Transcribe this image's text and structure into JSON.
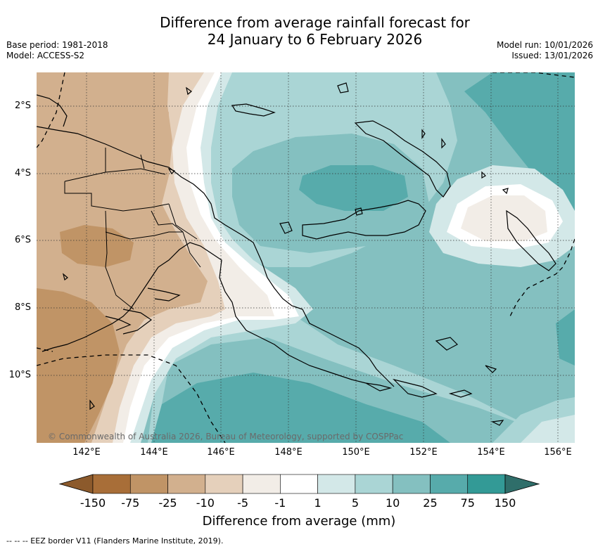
{
  "header": {
    "title_line1": "Difference from average rainfall forecast for",
    "title_line2": "24 January to 6 February 2026",
    "base_period": "Base period: 1981-2018",
    "model": "Model: ACCESS-S2",
    "model_run": "Model run: 10/01/2026",
    "issued": "Issued: 13/01/2026"
  },
  "map": {
    "lat_labels": [
      "2°S",
      "4°S",
      "6°S",
      "8°S",
      "10°S"
    ],
    "lon_labels": [
      "142°E",
      "144°E",
      "146°E",
      "148°E",
      "150°E",
      "152°E",
      "154°E",
      "156°E"
    ],
    "copyright": "© Commonwealth of Australia 2026, Bureau of Meteorology, supported by COSPPac",
    "colors": {
      "dry_3": "#a86e38",
      "dry_2": "#c09466",
      "dry_1": "#d2b08e",
      "dry_0": "#e5d0bb",
      "near_dry": "#f2ede7",
      "neutral": "#ffffff",
      "wet_0": "#d3e8e8",
      "wet_1": "#aad5d5",
      "wet_2": "#84c0c0",
      "wet_3": "#57abab",
      "wet_4": "#339a96",
      "wet_5": "#2f6e6a",
      "dry_5": "#8c5a2c"
    }
  },
  "colorbar": {
    "tick_labels": [
      "-150",
      "-75",
      "-25",
      "-10",
      "-5",
      "-1",
      "1",
      "5",
      "10",
      "25",
      "75",
      "150"
    ],
    "colors": [
      "#8c5a2c",
      "#a86e38",
      "#c09466",
      "#d2b08e",
      "#e5d0bb",
      "#f2ede7",
      "#ffffff",
      "#d3e8e8",
      "#aad5d5",
      "#84c0c0",
      "#57abab",
      "#339a96",
      "#2f6e6a"
    ],
    "title": "Difference from average (mm)"
  },
  "footer": {
    "eez_note": "--  --  -- EEZ border V11 (Flanders Marine Institute, 2019)."
  }
}
